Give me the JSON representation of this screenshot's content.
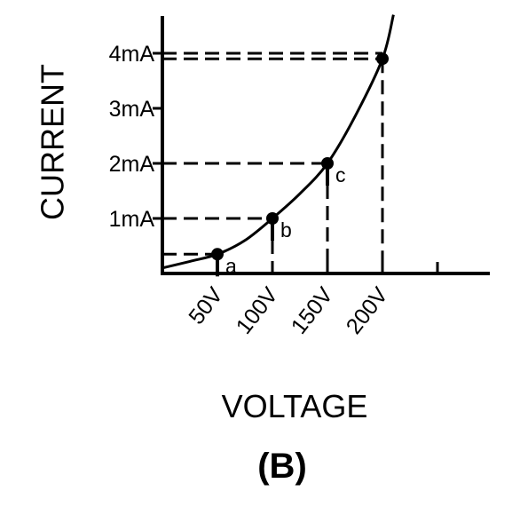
{
  "chart_data": {
    "type": "line",
    "xlabel": "VOLTAGE",
    "ylabel": "CURRENT",
    "caption": "(B)",
    "x_unit": "V",
    "y_unit": "mA",
    "x_ticks": [
      {
        "value": 50,
        "label": "50V"
      },
      {
        "value": 100,
        "label": "100V"
      },
      {
        "value": 150,
        "label": "150V"
      },
      {
        "value": 200,
        "label": "200V"
      },
      {
        "value": 250,
        "label": ""
      }
    ],
    "y_ticks": [
      {
        "value": 1,
        "label": "1mA"
      },
      {
        "value": 2,
        "label": "2mA"
      },
      {
        "value": 3,
        "label": "3mA"
      },
      {
        "value": 4,
        "label": "4mA"
      }
    ],
    "xlim": [
      0,
      300
    ],
    "ylim": [
      0,
      4.8
    ],
    "curve": {
      "x": [
        0,
        25,
        50,
        75,
        100,
        125,
        150,
        175,
        200,
        210
      ],
      "y": [
        0.1,
        0.22,
        0.35,
        0.6,
        1.0,
        1.45,
        2.0,
        2.85,
        3.9,
        4.7
      ]
    },
    "points": [
      {
        "label": "a",
        "x": 50,
        "y": 0.35
      },
      {
        "label": "b",
        "x": 100,
        "y": 1.0
      },
      {
        "label": "c",
        "x": 150,
        "y": 2.0
      },
      {
        "label": "",
        "x": 200,
        "y": 3.9
      }
    ],
    "grid": false,
    "legend": "none",
    "colors": {
      "ink": "#000000",
      "background": "#ffffff"
    }
  }
}
